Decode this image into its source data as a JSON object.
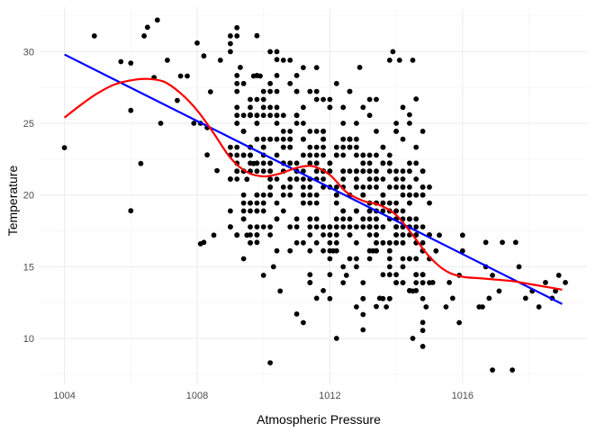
{
  "chart_data": {
    "type": "scatter",
    "title": "",
    "xlabel": "Atmospheric Pressure",
    "ylabel": "Temperature",
    "xlim": [
      1003.25,
      1019.75
    ],
    "ylim": [
      6.8,
      33.1
    ],
    "x_ticks": [
      1004,
      1008,
      1012,
      1016
    ],
    "x_minor_ticks": [
      1006,
      1010,
      1014,
      1018
    ],
    "y_ticks": [
      10,
      15,
      20,
      25,
      30
    ],
    "y_minor_ticks": [
      7.5,
      12.5,
      17.5,
      22.5,
      27.5,
      32.5
    ],
    "grid": true,
    "legend": "none",
    "colors": {
      "points": "#000000",
      "linear_fit": "#0000ff",
      "smooth_fit": "#ff0000",
      "grid": "#ebebeb"
    },
    "points": [
      [
        1004.0,
        23.3
      ],
      [
        1004.9,
        31.1
      ],
      [
        1005.7,
        29.3
      ],
      [
        1006.0,
        29.2
      ],
      [
        1006.0,
        25.9
      ],
      [
        1006.0,
        18.9
      ],
      [
        1006.3,
        22.2
      ],
      [
        1006.4,
        31.1
      ],
      [
        1006.5,
        31.7
      ],
      [
        1006.8,
        32.2
      ],
      [
        1006.7,
        28.2
      ],
      [
        1006.9,
        25.0
      ],
      [
        1007.1,
        29.4
      ],
      [
        1007.4,
        26.6
      ],
      [
        1007.5,
        28.3
      ],
      [
        1007.7,
        28.3
      ],
      [
        1007.9,
        25.0
      ],
      [
        1008.0,
        30.6
      ],
      [
        1008.2,
        29.7
      ],
      [
        1008.4,
        27.2
      ],
      [
        1008.1,
        25.0
      ],
      [
        1008.3,
        24.7
      ],
      [
        1008.1,
        16.6
      ],
      [
        1008.2,
        16.7
      ],
      [
        1008.3,
        22.8
      ],
      [
        1008.5,
        17.2
      ],
      [
        1008.6,
        21.7
      ],
      [
        1008.7,
        29.4
      ],
      [
        1009.0,
        31.1
      ],
      [
        1009.2,
        31.1
      ],
      [
        1009.3,
        28.9
      ],
      [
        1009.6,
        25.6
      ],
      [
        1009.7,
        28.3
      ],
      [
        1009.9,
        28.3
      ],
      [
        1009.8,
        16.7
      ],
      [
        1009.5,
        17.2
      ],
      [
        1009.2,
        17.2
      ],
      [
        1009.5,
        21.1
      ],
      [
        1009.7,
        22.2
      ],
      [
        1010.2,
        8.3
      ],
      [
        1010.0,
        14.4
      ],
      [
        1010.3,
        15.0
      ],
      [
        1010.5,
        13.3
      ],
      [
        1010.6,
        29.4
      ],
      [
        1010.8,
        29.4
      ],
      [
        1011.0,
        11.7
      ],
      [
        1011.2,
        11.1
      ],
      [
        1011.4,
        13.9
      ],
      [
        1011.6,
        12.8
      ],
      [
        1012.1,
        16.1
      ],
      [
        1012.2,
        10.0
      ],
      [
        1012.5,
        14.4
      ],
      [
        1012.8,
        12.2
      ],
      [
        1012.9,
        28.9
      ],
      [
        1013.0,
        10.6
      ],
      [
        1013.3,
        16.1
      ],
      [
        1013.5,
        12.8
      ],
      [
        1013.7,
        12.2
      ],
      [
        1013.8,
        29.4
      ],
      [
        1013.9,
        30.0
      ],
      [
        1014.1,
        29.4
      ],
      [
        1014.4,
        25.6
      ],
      [
        1014.6,
        26.7
      ],
      [
        1014.5,
        29.4
      ],
      [
        1014.5,
        10.0
      ],
      [
        1014.5,
        13.3
      ],
      [
        1014.9,
        12.2
      ],
      [
        1015.1,
        13.9
      ],
      [
        1015.2,
        16.1
      ],
      [
        1015.3,
        17.2
      ],
      [
        1015.5,
        12.2
      ],
      [
        1015.6,
        13.9
      ],
      [
        1015.7,
        12.8
      ],
      [
        1015.9,
        11.1
      ],
      [
        1015.9,
        14.4
      ],
      [
        1016.0,
        16.1
      ],
      [
        1016.0,
        17.2
      ],
      [
        1016.5,
        12.2
      ],
      [
        1016.6,
        12.2
      ],
      [
        1016.7,
        15.0
      ],
      [
        1016.7,
        16.7
      ],
      [
        1016.8,
        12.8
      ],
      [
        1016.9,
        14.4
      ],
      [
        1016.9,
        7.8
      ],
      [
        1017.1,
        13.3
      ],
      [
        1017.2,
        16.7
      ],
      [
        1017.5,
        7.8
      ],
      [
        1017.6,
        16.7
      ],
      [
        1017.7,
        15.0
      ],
      [
        1017.9,
        12.8
      ],
      [
        1018.1,
        13.3
      ],
      [
        1018.3,
        12.2
      ],
      [
        1018.5,
        13.9
      ],
      [
        1018.7,
        12.8
      ],
      [
        1018.8,
        13.3
      ],
      [
        1018.9,
        14.4
      ],
      [
        1019.1,
        13.9
      ]
    ],
    "dense_cluster": {
      "x_range": [
        1009.0,
        1015.0
      ],
      "temperature_band_offset": 5.5,
      "count": 520,
      "seed": 7
    },
    "linear_fit": {
      "x": [
        1004.0,
        1019.0
      ],
      "y": [
        29.8,
        12.4
      ]
    },
    "smooth_fit": {
      "x": [
        1004.0,
        1004.5,
        1005.0,
        1005.5,
        1006.0,
        1006.5,
        1007.0,
        1007.5,
        1008.0,
        1008.5,
        1009.0,
        1009.5,
        1010.0,
        1010.5,
        1011.0,
        1011.5,
        1012.0,
        1012.5,
        1013.0,
        1013.5,
        1014.0,
        1014.5,
        1015.0,
        1015.5,
        1016.0,
        1016.5,
        1017.0,
        1017.5,
        1018.0,
        1018.5,
        1019.0
      ],
      "y": [
        25.4,
        26.3,
        27.1,
        27.7,
        28.0,
        28.1,
        27.9,
        27.1,
        25.9,
        24.3,
        22.6,
        21.6,
        21.3,
        21.5,
        21.9,
        22.0,
        21.4,
        20.2,
        19.6,
        19.3,
        18.6,
        17.2,
        15.7,
        14.7,
        14.3,
        14.2,
        14.1,
        14.0,
        13.8,
        13.6,
        13.4
      ]
    }
  }
}
